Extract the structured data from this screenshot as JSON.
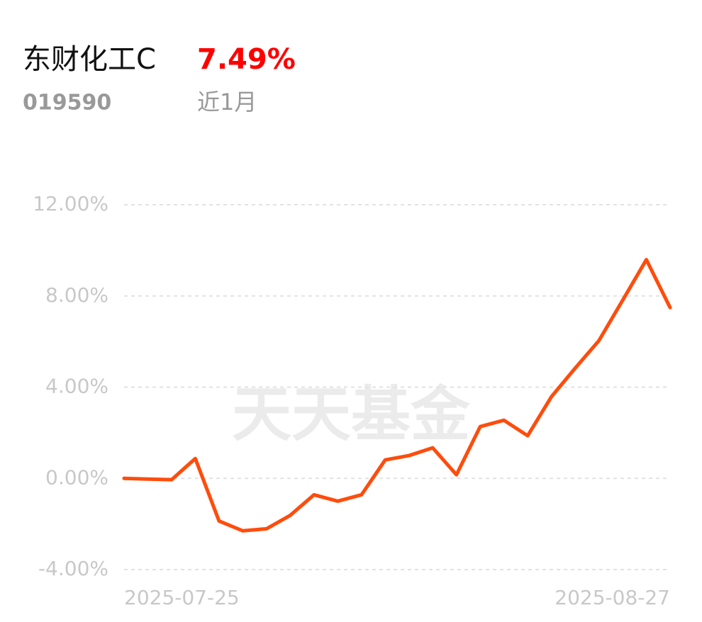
{
  "header": {
    "name": "东财化工C",
    "return": "7.49%",
    "code": "019590",
    "period": "近1月"
  },
  "chart_data": {
    "type": "line",
    "watermark": "天天基金",
    "categories": [
      "2025-07-25",
      null,
      null,
      null,
      null,
      null,
      null,
      null,
      null,
      null,
      null,
      null,
      null,
      null,
      null,
      null,
      null,
      null,
      null,
      null,
      null,
      null,
      null,
      "2025-08-27"
    ],
    "series": [
      {
        "color": "#ff4c0c",
        "values": [
          0.0,
          -0.03,
          -0.06,
          0.87,
          -1.87,
          -2.3,
          -2.21,
          -1.62,
          -0.72,
          -1.0,
          -0.72,
          0.81,
          1.0,
          1.34,
          0.16,
          2.27,
          2.55,
          1.87,
          3.58,
          4.83,
          6.04,
          7.81,
          9.59,
          7.49
        ]
      }
    ],
    "ylim": [
      -4,
      12
    ],
    "yticks": [
      {
        "value": -4,
        "label": "-4.00%"
      },
      {
        "value": 0,
        "label": "0.00%"
      },
      {
        "value": 4,
        "label": "4.00%"
      },
      {
        "value": 8,
        "label": "8.00%"
      },
      {
        "value": 12,
        "label": "12.00%"
      }
    ],
    "grid": true
  }
}
